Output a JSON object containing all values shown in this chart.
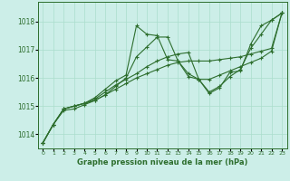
{
  "xlabel": "Graphe pression niveau de la mer (hPa)",
  "background_color": "#cceee8",
  "line_color": "#2d6e2d",
  "grid_color": "#aaddcc",
  "x_ticks": [
    0,
    1,
    2,
    3,
    4,
    5,
    6,
    7,
    8,
    9,
    10,
    11,
    12,
    13,
    14,
    15,
    16,
    17,
    18,
    19,
    20,
    21,
    22,
    23
  ],
  "ylim": [
    1013.5,
    1018.7
  ],
  "y_ticks": [
    1014,
    1015,
    1016,
    1017,
    1018
  ],
  "lines": [
    [
      1013.7,
      1014.35,
      1014.9,
      1015.0,
      1015.1,
      1015.3,
      1015.6,
      1015.9,
      1016.1,
      1017.85,
      1017.55,
      1017.5,
      1016.65,
      1016.6,
      1016.15,
      1015.95,
      1015.45,
      1015.65,
      1016.2,
      1016.25,
      1017.2,
      1017.85,
      1018.05,
      1018.3
    ],
    [
      1013.7,
      1014.35,
      1014.85,
      1014.9,
      1015.05,
      1015.2,
      1015.4,
      1015.7,
      1016.0,
      1016.75,
      1017.1,
      1017.45,
      1017.45,
      1016.6,
      1016.05,
      1015.95,
      1015.5,
      1015.7,
      1016.05,
      1016.3,
      1017.05,
      1017.55,
      1018.05,
      1018.3
    ],
    [
      1013.7,
      1014.35,
      1014.9,
      1015.0,
      1015.1,
      1015.25,
      1015.5,
      1015.75,
      1015.95,
      1016.15,
      1016.4,
      1016.6,
      1016.75,
      1016.85,
      1016.9,
      1015.95,
      1015.95,
      1016.1,
      1016.25,
      1016.4,
      1016.55,
      1016.7,
      1016.95,
      1018.3
    ],
    [
      1013.7,
      1014.35,
      1014.9,
      1015.0,
      1015.1,
      1015.2,
      1015.4,
      1015.6,
      1015.8,
      1016.0,
      1016.15,
      1016.3,
      1016.45,
      1016.55,
      1016.6,
      1016.6,
      1016.6,
      1016.65,
      1016.7,
      1016.75,
      1016.85,
      1016.95,
      1017.05,
      1018.3
    ]
  ]
}
